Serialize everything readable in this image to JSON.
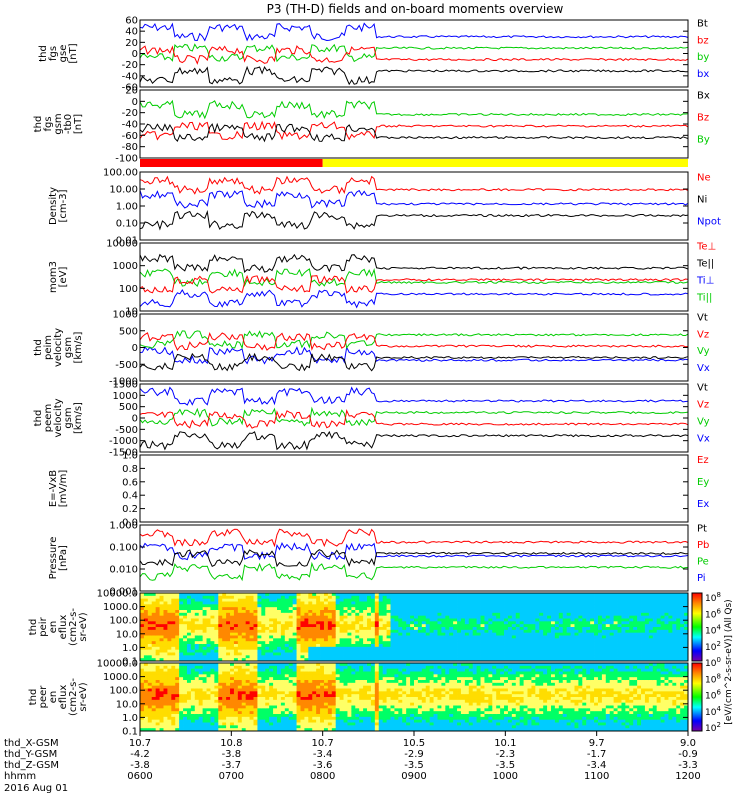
{
  "title": "P3 (TH-D) fields and on-board moments overview",
  "chart_data": {
    "type": "line",
    "title": "P3 (TH-D) fields and on-board moments overview",
    "panels": [
      {
        "id": "fgs-gse",
        "ylabel": [
          "thd",
          "fgs",
          "gse",
          "[nT]"
        ],
        "yticks": [
          "60",
          "40",
          "20",
          "0",
          "-20",
          "-40",
          "-60"
        ],
        "ylim": [
          -60,
          60
        ],
        "legend": [
          {
            "name": "Bt",
            "color": "#000000"
          },
          {
            "name": "bz",
            "color": "#ff0000"
          },
          {
            "name": "by",
            "color": "#00cc00"
          },
          {
            "name": "bx",
            "color": "#0000ff"
          }
        ]
      },
      {
        "id": "fgs-gsm",
        "ylabel": [
          "thd",
          "fgs",
          "gsm",
          "-tb0",
          "[nT]"
        ],
        "yticks": [
          "20",
          "0",
          "-20",
          "-40",
          "-60",
          "-80",
          "-100"
        ],
        "ylim": [
          -100,
          20
        ],
        "legend": [
          {
            "name": "Bx",
            "color": "#000000"
          },
          {
            "name": "Bz",
            "color": "#ff0000"
          },
          {
            "name": "By",
            "color": "#00cc00"
          }
        ]
      },
      {
        "id": "density",
        "ylabel": [
          "Density",
          "[cm-3]"
        ],
        "yticks": [
          "100.00",
          "10.00",
          "1.00",
          "0.10",
          "0.01"
        ],
        "ylim": [
          0.01,
          100
        ],
        "log": true,
        "legend": [
          {
            "name": "Ne",
            "color": "#ff0000"
          },
          {
            "name": "Ni",
            "color": "#000000"
          },
          {
            "name": "Npot",
            "color": "#0000ff"
          }
        ]
      },
      {
        "id": "temperature",
        "ylabel": [
          "mom3",
          "[eV]"
        ],
        "yticks": [
          "10000",
          "1000",
          "100",
          "10"
        ],
        "ylim": [
          10,
          10000
        ],
        "log": true,
        "legend": [
          {
            "name": "Te⊥",
            "color": "#ff0000"
          },
          {
            "name": "Te||",
            "color": "#000000"
          },
          {
            "name": "Ti⊥",
            "color": "#0000ff"
          },
          {
            "name": "Ti||",
            "color": "#00cc00"
          }
        ]
      },
      {
        "id": "peim-velocity",
        "ylabel": [
          "thd",
          "peim",
          "velocity",
          "gsm",
          "[km/s]"
        ],
        "yticks": [
          "1000",
          "500",
          "0",
          "-500",
          "-1000"
        ],
        "ylim": [
          -1000,
          1000
        ],
        "legend": [
          {
            "name": "Vt",
            "color": "#000000"
          },
          {
            "name": "Vz",
            "color": "#ff0000"
          },
          {
            "name": "Vy",
            "color": "#00cc00"
          },
          {
            "name": "Vx",
            "color": "#0000ff"
          }
        ]
      },
      {
        "id": "peem-velocity",
        "ylabel": [
          "thd",
          "peem",
          "velocity",
          "gsm",
          "[km/s]"
        ],
        "yticks": [
          "1500",
          "1000",
          "500",
          "0",
          "-500",
          "-1000",
          "-1500"
        ],
        "ylim": [
          -1500,
          1500
        ],
        "legend": [
          {
            "name": "Vt",
            "color": "#000000"
          },
          {
            "name": "Vz",
            "color": "#ff0000"
          },
          {
            "name": "Vy",
            "color": "#00cc00"
          },
          {
            "name": "Vx",
            "color": "#0000ff"
          }
        ]
      },
      {
        "id": "efield",
        "ylabel": [
          "E=-VxB",
          "[mV/m]"
        ],
        "yticks": [
          "1.0",
          "0.8",
          "0.6",
          "0.4",
          "0.2",
          "0.0"
        ],
        "ylim": [
          0,
          1
        ],
        "legend": [
          {
            "name": "Ez",
            "color": "#ff0000"
          },
          {
            "name": "Ey",
            "color": "#00cc00"
          },
          {
            "name": "Ex",
            "color": "#0000ff"
          }
        ]
      },
      {
        "id": "pressure",
        "ylabel": [
          "Pressure",
          "[nPa]"
        ],
        "yticks": [
          "1.000",
          "0.100",
          "0.010",
          "0.001"
        ],
        "ylim": [
          0.001,
          1
        ],
        "log": true,
        "legend": [
          {
            "name": "Pt",
            "color": "#000000"
          },
          {
            "name": "Pb",
            "color": "#ff0000"
          },
          {
            "name": "Pe",
            "color": "#00cc00"
          },
          {
            "name": "Pi",
            "color": "#0000ff"
          }
        ]
      },
      {
        "id": "peir-spec",
        "ylabel": [
          "thd",
          "peir",
          "en",
          "eflux",
          "(cm2-s-",
          "sr-eV)"
        ],
        "yticks": [
          "10000.0",
          "1000.0",
          "100.0",
          "10.0",
          "1.0",
          "0.1"
        ],
        "type": "spectrogram"
      },
      {
        "id": "peer-spec",
        "ylabel": [
          "thd",
          "peer",
          "en",
          "eflux",
          "(cm2-s-",
          "sr-eV)"
        ],
        "yticks": [
          "10000.0",
          "1000.0",
          "100.0",
          "10.0",
          "1.0",
          "0.1"
        ],
        "type": "spectrogram"
      }
    ],
    "colorbar": {
      "label": "[eV/(cm^2-s-sr-eV)] (All Qs)",
      "ticks": [
        "10^8",
        "10^6",
        "10^4",
        "10^2",
        "10^0",
        "10^8",
        "10^6",
        "10^4",
        "10^2"
      ]
    },
    "xaxis": {
      "rows": [
        {
          "label": "thd_X-GSM",
          "values": [
            "10.7",
            "10.8",
            "10.7",
            "10.5",
            "10.1",
            "9.7",
            "9.0"
          ]
        },
        {
          "label": "thd_Y-GSM",
          "values": [
            "-4.2",
            "-3.8",
            "-3.4",
            "-2.9",
            "-2.3",
            "-1.7",
            "-0.9"
          ]
        },
        {
          "label": "thd_Z-GSM",
          "values": [
            "-3.8",
            "-3.7",
            "-3.6",
            "-3.5",
            "-3.5",
            "-3.4",
            "-3.3"
          ]
        },
        {
          "label": "hhmm",
          "values": [
            "0600",
            "0700",
            "0800",
            "0900",
            "1000",
            "1100",
            "1200"
          ]
        }
      ],
      "date": "2016 Aug 01"
    },
    "mode_bar": {
      "segments": [
        {
          "color": "#ff0000",
          "from": "0600",
          "to": "0800"
        },
        {
          "color": "#ffff00",
          "from": "0800",
          "to": "1200"
        }
      ]
    }
  }
}
